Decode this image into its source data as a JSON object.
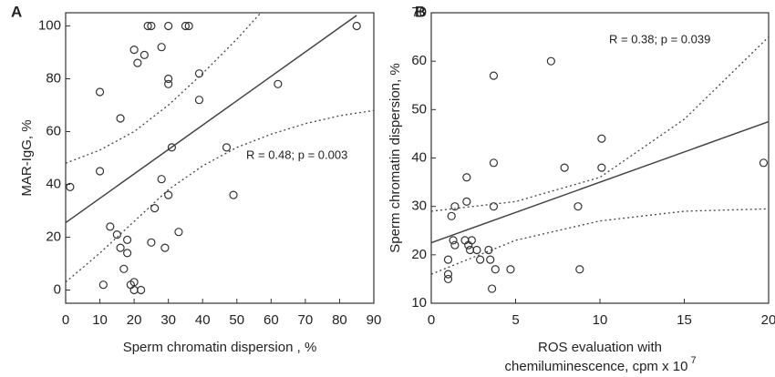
{
  "chart_data": [
    {
      "type": "scatter",
      "panel_label": "A",
      "xlabel": [
        "Sperm chromatin dispersion , %"
      ],
      "ylabel": "MAR-IgG, %",
      "annotation": "R = 0.48; p = 0.003",
      "x": [
        1.3,
        10,
        10,
        11,
        13,
        15,
        16,
        16,
        17,
        18,
        18,
        19,
        20,
        20,
        20,
        21,
        22,
        23,
        24,
        25,
        25,
        26,
        28,
        28,
        29,
        30,
        30,
        30,
        30,
        31,
        33,
        35,
        36,
        39,
        39,
        47,
        49,
        62,
        85
      ],
      "y": [
        39,
        75,
        45,
        2,
        24,
        21,
        65,
        16,
        8,
        14,
        19,
        2,
        0,
        3,
        91,
        86,
        0,
        89,
        100,
        100,
        18,
        31,
        92,
        42,
        16,
        78,
        80,
        100,
        36,
        54,
        22,
        100,
        100,
        82,
        72,
        54,
        36,
        78,
        100
      ],
      "fit": {
        "x": [
          0,
          85
        ],
        "y": [
          25.5,
          104
        ]
      },
      "ci_upper": {
        "x": [
          0,
          10,
          20,
          30,
          40,
          50,
          57
        ],
        "y": [
          48,
          53,
          60,
          70,
          82,
          95,
          105
        ]
      },
      "ci_lower": {
        "x": [
          0,
          10,
          20,
          30,
          40,
          50,
          60,
          70,
          80,
          90
        ],
        "y": [
          3,
          14,
          26,
          38,
          47,
          54,
          59,
          63,
          66,
          68
        ]
      },
      "xlim": [
        0,
        90
      ],
      "ylim": [
        -5,
        105
      ],
      "xticks": [
        0,
        10,
        20,
        30,
        40,
        50,
        60,
        70,
        80,
        90
      ],
      "yticks": [
        0,
        20,
        40,
        60,
        80,
        100
      ]
    },
    {
      "type": "scatter",
      "panel_label": "B",
      "xlabel": [
        "ROS evaluation with",
        "chemiluminescence, cpm x 10"
      ],
      "xlabel_superscript": "7",
      "ylabel": "Sperm chromatin dispersion, %",
      "annotation": "R = 0.38; p = 0.039",
      "x": [
        1.0,
        1.0,
        1.0,
        1.2,
        1.3,
        1.4,
        1.4,
        2,
        2.1,
        2.1,
        2.2,
        2.3,
        2.4,
        2.7,
        2.9,
        3.4,
        3.5,
        3.6,
        3.7,
        3.7,
        3.7,
        3.8,
        4.7,
        7.1,
        7.9,
        8.7,
        8.8,
        10.1,
        10.1,
        19.7
      ],
      "y": [
        15,
        16,
        19,
        28,
        23,
        22,
        30,
        23,
        31,
        36,
        22,
        21,
        23,
        21,
        19,
        21,
        19,
        13,
        39,
        57,
        30,
        17,
        17,
        60,
        38,
        30,
        17,
        44,
        38,
        39
      ],
      "fit": {
        "x": [
          0,
          20
        ],
        "y": [
          22.5,
          47.5
        ]
      },
      "ci_upper": {
        "x": [
          0,
          5,
          10,
          15,
          20
        ],
        "y": [
          29,
          31,
          36,
          48,
          65
        ]
      },
      "ci_lower": {
        "x": [
          0,
          5,
          10,
          15,
          20
        ],
        "y": [
          16,
          23,
          27,
          29,
          29.5
        ]
      },
      "xlim": [
        0,
        20
      ],
      "ylim": [
        10,
        70
      ],
      "xticks": [
        0,
        5,
        10,
        15,
        20
      ],
      "yticks": [
        10,
        20,
        30,
        40,
        50,
        60,
        70
      ]
    }
  ]
}
